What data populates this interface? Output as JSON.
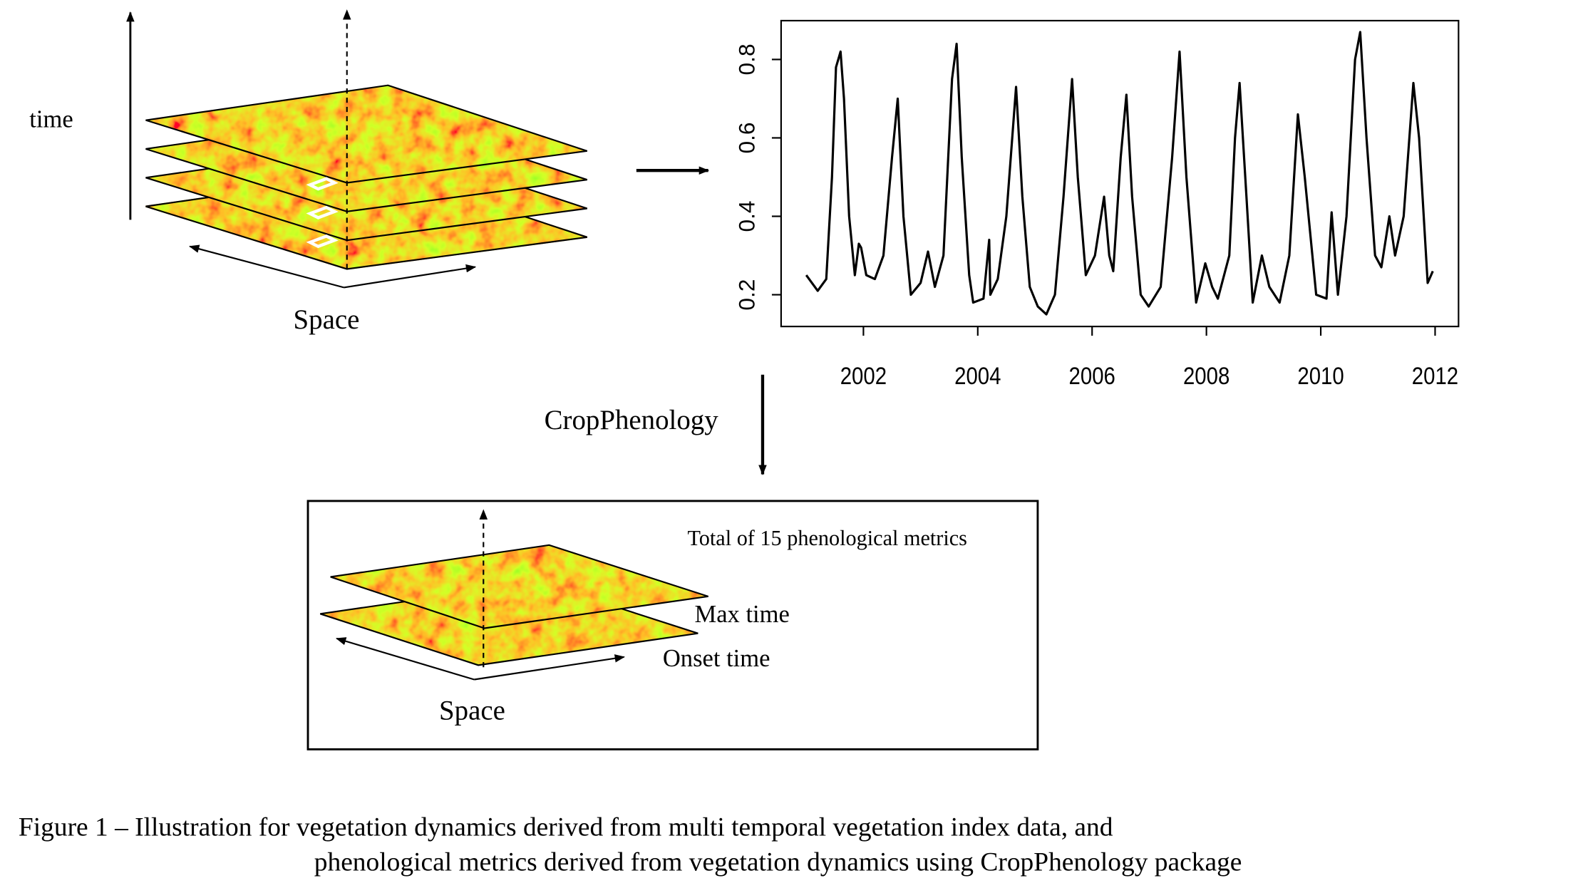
{
  "diagram": {
    "time_label": "time",
    "space_label": "Space",
    "process_label": "CropPhenology",
    "output_box": {
      "title": "Total of 15 phenological metrics",
      "layers": [
        "Max time",
        "Onset time"
      ],
      "space_label": "Space"
    },
    "caption": [
      "Figure 1 – Illustration for vegetation dynamics derived from multi temporal vegetation index data, and",
      "phenological metrics derived from vegetation dynamics using CropPhenology package"
    ]
  },
  "chart_data": {
    "type": "line",
    "color": "#000000",
    "x": [
      2001.0,
      2001.1,
      2001.2,
      2001.35,
      2001.45,
      2001.52,
      2001.6,
      2001.66,
      2001.75,
      2001.85,
      2001.92,
      2001.96,
      2002.05,
      2002.2,
      2002.35,
      2002.5,
      2002.6,
      2002.7,
      2002.83,
      2003.0,
      2003.13,
      2003.25,
      2003.4,
      2003.55,
      2003.63,
      2003.72,
      2003.85,
      2003.92,
      2004.1,
      2004.2,
      2004.22,
      2004.35,
      2004.5,
      2004.67,
      2004.78,
      2004.91,
      2005.05,
      2005.2,
      2005.35,
      2005.5,
      2005.65,
      2005.75,
      2005.89,
      2006.05,
      2006.21,
      2006.3,
      2006.37,
      2006.5,
      2006.6,
      2006.7,
      2006.85,
      2006.99,
      2007.2,
      2007.4,
      2007.53,
      2007.65,
      2007.82,
      2007.98,
      2008.1,
      2008.2,
      2008.4,
      2008.5,
      2008.58,
      2008.7,
      2008.81,
      2008.97,
      2009.1,
      2009.28,
      2009.45,
      2009.6,
      2009.72,
      2009.92,
      2010.1,
      2010.19,
      2010.3,
      2010.45,
      2010.6,
      2010.69,
      2010.8,
      2010.95,
      2011.06,
      2011.2,
      2011.3,
      2011.45,
      2011.62,
      2011.72,
      2011.87,
      2011.96
    ],
    "values": [
      0.25,
      0.23,
      0.21,
      0.24,
      0.5,
      0.78,
      0.82,
      0.7,
      0.4,
      0.25,
      0.33,
      0.32,
      0.25,
      0.24,
      0.3,
      0.55,
      0.7,
      0.4,
      0.2,
      0.23,
      0.31,
      0.22,
      0.3,
      0.75,
      0.84,
      0.55,
      0.25,
      0.18,
      0.19,
      0.34,
      0.2,
      0.24,
      0.4,
      0.73,
      0.45,
      0.22,
      0.17,
      0.15,
      0.2,
      0.45,
      0.75,
      0.5,
      0.25,
      0.3,
      0.45,
      0.3,
      0.26,
      0.55,
      0.71,
      0.45,
      0.2,
      0.17,
      0.22,
      0.55,
      0.82,
      0.5,
      0.18,
      0.28,
      0.22,
      0.19,
      0.3,
      0.6,
      0.74,
      0.45,
      0.18,
      0.3,
      0.22,
      0.18,
      0.3,
      0.66,
      0.5,
      0.2,
      0.19,
      0.41,
      0.2,
      0.4,
      0.8,
      0.87,
      0.6,
      0.3,
      0.27,
      0.4,
      0.3,
      0.4,
      0.74,
      0.6,
      0.23,
      0.26
    ],
    "xlim": [
      2000.56,
      2012.41
    ],
    "ylim": [
      0.119,
      0.899
    ],
    "xticks": [
      2002,
      2004,
      2006,
      2008,
      2010,
      2012
    ],
    "yticks": [
      0.2,
      0.4,
      0.6,
      0.8
    ]
  }
}
